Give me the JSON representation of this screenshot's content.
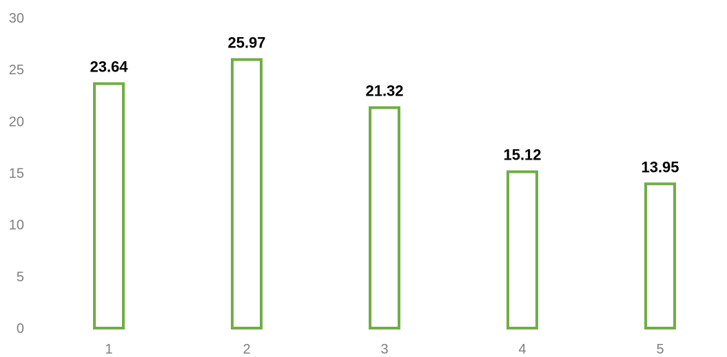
{
  "chart_data": {
    "type": "bar",
    "categories": [
      "1",
      "2",
      "3",
      "4",
      "5"
    ],
    "values": [
      23.64,
      25.97,
      21.32,
      15.12,
      13.95
    ],
    "data_labels": [
      "23.64",
      "25.97",
      "21.32",
      "15.12",
      "13.95"
    ],
    "title": "",
    "xlabel": "",
    "ylabel": "",
    "ylim": [
      0,
      30
    ],
    "yticks": [
      "0",
      "5",
      "10",
      "15",
      "20",
      "25",
      "30"
    ],
    "grid": false,
    "legend": "none",
    "bar_style": "outline",
    "bar_color": "#70ad47"
  }
}
